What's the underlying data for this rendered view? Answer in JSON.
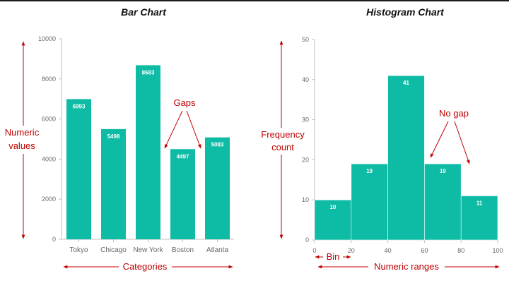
{
  "colors": {
    "bar": "#0ebba5",
    "annotation": "#c00000",
    "axis": "#bfbfbf"
  },
  "chart_data": [
    {
      "type": "bar",
      "title": "Bar Chart",
      "categories": [
        "Tokyo",
        "Chicago",
        "New York",
        "Boston",
        "Atlanta"
      ],
      "values": [
        6993,
        5498,
        8683,
        4497,
        5083
      ],
      "ylim": [
        0,
        10000
      ],
      "yticks": [
        0,
        2000,
        4000,
        6000,
        8000,
        10000
      ],
      "grid": false,
      "annotations": {
        "y_axis": [
          "Numeric",
          "values"
        ],
        "x_axis": "Categories",
        "gaps": "Gaps"
      }
    },
    {
      "type": "histogram",
      "title": "Histogram Chart",
      "bins": [
        [
          0,
          20
        ],
        [
          20,
          40
        ],
        [
          40,
          60
        ],
        [
          60,
          80
        ],
        [
          80,
          100
        ]
      ],
      "values": [
        10,
        19,
        41,
        19,
        11
      ],
      "xlim": [
        0,
        100
      ],
      "ylim": [
        0,
        50
      ],
      "xticks": [
        0,
        20,
        40,
        60,
        80,
        100
      ],
      "yticks": [
        0,
        10,
        20,
        30,
        40,
        50
      ],
      "grid": false,
      "annotations": {
        "y_axis": [
          "Frequency",
          "count"
        ],
        "x_axis": "Numeric ranges",
        "bin": "Bin",
        "no_gap": "No gap"
      }
    }
  ]
}
